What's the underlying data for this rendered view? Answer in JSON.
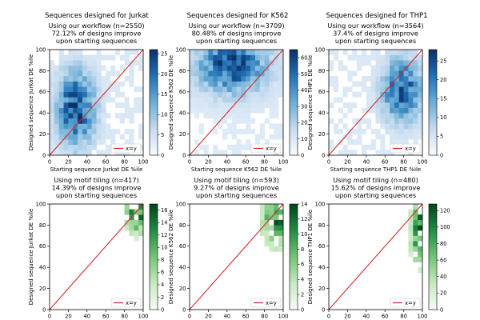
{
  "figure": {
    "column_titles": [
      "Sequences designed for Jurkat",
      "Sequences designed for K562",
      "Sequences designed for THP1"
    ]
  },
  "colors": {
    "blue_cmap": [
      "#f7fbff",
      "#c6dbef",
      "#6baed6",
      "#2171b5",
      "#08306b"
    ],
    "green_cmap": [
      "#f7fcf5",
      "#c7e9c0",
      "#74c476",
      "#238b45",
      "#00441b"
    ],
    "diagonal": "#d62728"
  },
  "chart_data": [
    {
      "type": "heatmap",
      "row": 0,
      "col": 0,
      "title_lines": [
        "Using our workflow (n=2550)",
        "72.12% of designs improve",
        "upon starting sequences"
      ],
      "xlabel": "Starting sequence Jurkat  DE %ile",
      "ylabel": "Designed sequence Jurkat  DE %ile",
      "xlim": [
        0,
        100
      ],
      "ylim": [
        0,
        100
      ],
      "xticks": [
        0,
        20,
        40,
        60,
        80,
        100
      ],
      "yticks": [
        0,
        20,
        40,
        60,
        80,
        100
      ],
      "legend": "x=y",
      "legend_loc": "lower right",
      "colormap": "blue",
      "colorbar": {
        "min": 0,
        "max": 26,
        "ticks": [
          0,
          5,
          10,
          15,
          20,
          25
        ]
      },
      "hotspot": {
        "x": 28,
        "y": 45,
        "sx": 14,
        "sy": 24,
        "peak": 25
      }
    },
    {
      "type": "heatmap",
      "row": 0,
      "col": 1,
      "title_lines": [
        "Using our workflow (n=3709)",
        "80.48% of designs improve",
        "upon starting sequences"
      ],
      "xlabel": "Starting sequence K562  DE %ile",
      "ylabel": "Designed sequence K562  DE %ile",
      "xlim": [
        0,
        100
      ],
      "ylim": [
        0,
        100
      ],
      "xticks": [
        0,
        20,
        40,
        60,
        80,
        100
      ],
      "yticks": [
        0,
        20,
        40,
        60,
        80,
        100
      ],
      "legend": "x=y",
      "legend_loc": "lower right",
      "colormap": "blue",
      "colorbar": {
        "min": 0,
        "max": 65,
        "ticks": [
          0,
          10,
          20,
          30,
          40,
          50,
          60
        ]
      },
      "hotspot": {
        "x": 45,
        "y": 85,
        "sx": 26,
        "sy": 18,
        "peak": 60
      }
    },
    {
      "type": "heatmap",
      "row": 0,
      "col": 2,
      "title_lines": [
        "Using our workflow (n=3564)",
        "37.4% of designs improve",
        "upon starting sequences"
      ],
      "xlabel": "Starting sequence THP1  DE %ile",
      "ylabel": "Designed sequence THP1  DE %ile",
      "xlim": [
        0,
        100
      ],
      "ylim": [
        0,
        100
      ],
      "xticks": [
        0,
        20,
        40,
        60,
        80,
        100
      ],
      "yticks": [
        0,
        20,
        40,
        60,
        80,
        100
      ],
      "legend": "x=y",
      "legend_loc": "lower right",
      "colormap": "blue",
      "colorbar": {
        "min": 0,
        "max": 28,
        "ticks": [
          0,
          5,
          10,
          15,
          20,
          25
        ]
      },
      "hotspot": {
        "x": 78,
        "y": 62,
        "sx": 14,
        "sy": 20,
        "peak": 26
      }
    },
    {
      "type": "heatmap",
      "row": 1,
      "col": 0,
      "title_lines": [
        "Using motif tiling (n=417)",
        "14.39% of designs improve",
        "upon starting sequences"
      ],
      "xlabel": "Starting sequence Jurkat  DE %ile",
      "ylabel": "Designed sequence Jurkat  DE %ile",
      "xlim": [
        0,
        100
      ],
      "ylim": [
        0,
        100
      ],
      "xticks": [
        0,
        20,
        40,
        60,
        80,
        100
      ],
      "yticks": [
        0,
        20,
        40,
        60,
        80,
        100
      ],
      "legend": "x=y",
      "legend_loc": "lower right",
      "colormap": "green",
      "colorbar": {
        "min": 0,
        "max": 17,
        "ticks": [
          0,
          2,
          4,
          6,
          8,
          10,
          12,
          14,
          16
        ]
      },
      "hotspot": {
        "x": 94,
        "y": 92,
        "sx": 8,
        "sy": 12,
        "peak": 16
      }
    },
    {
      "type": "heatmap",
      "row": 1,
      "col": 1,
      "title_lines": [
        "Using motif tiling (n=593)",
        "9.27% of designs improve",
        "upon starting sequences"
      ],
      "xlabel": "Starting sequence K562  DE %ile",
      "ylabel": "Designed sequence K562  DE %ile",
      "xlim": [
        0,
        100
      ],
      "ylim": [
        0,
        100
      ],
      "xticks": [
        0,
        20,
        40,
        60,
        80,
        100
      ],
      "yticks": [
        0,
        20,
        40,
        60,
        80,
        100
      ],
      "legend": "x=y",
      "legend_loc": "lower right",
      "colormap": "green",
      "colorbar": {
        "min": 0,
        "max": 14,
        "ticks": [
          0,
          2,
          4,
          6,
          8,
          10,
          12,
          14
        ]
      },
      "hotspot": {
        "x": 93,
        "y": 88,
        "sx": 9,
        "sy": 16,
        "peak": 13
      }
    },
    {
      "type": "heatmap",
      "row": 1,
      "col": 2,
      "title_lines": [
        "Using motif tiling (n=480)",
        "15.62% of designs improve",
        "upon starting sequences"
      ],
      "xlabel": "Starting sequence THP1  DE %ile",
      "ylabel": "Designed sequence THP1  DE %ile",
      "xlim": [
        0,
        100
      ],
      "ylim": [
        0,
        100
      ],
      "xticks": [
        0,
        20,
        40,
        60,
        80,
        100
      ],
      "yticks": [
        0,
        20,
        40,
        60,
        80,
        100
      ],
      "legend": "x=y",
      "legend_loc": "lower right",
      "colormap": "green",
      "colorbar": {
        "min": 0,
        "max": 128,
        "ticks": [
          0,
          20,
          40,
          60,
          80,
          100,
          120
        ]
      },
      "hotspot": {
        "x": 96,
        "y": 80,
        "sx": 5,
        "sy": 24,
        "peak": 120
      }
    }
  ]
}
